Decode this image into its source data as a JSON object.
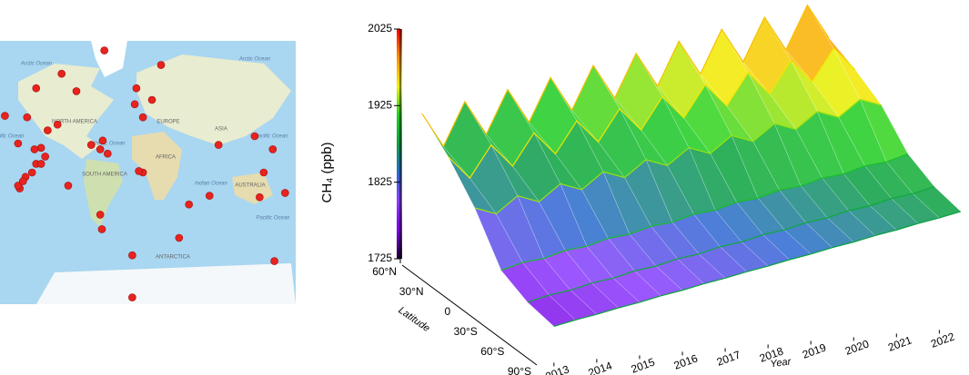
{
  "map": {
    "labels": [
      "Arctic Ocean",
      "Arctic Ocean",
      "NORTH AMERICA",
      "EUROPE",
      "ASIA",
      "Pacific Ocean",
      "Atlantic Ocean",
      "Pacific Ocean",
      "AFRICA",
      "SOUTH AMERICA",
      "Indian Ocean",
      "AUSTRALIA",
      "Pacific Ocean",
      "ANTARCTICA"
    ],
    "stations": [
      [
        -48,
        84
      ],
      [
        21,
        74
      ],
      [
        -100,
        68
      ],
      [
        -131,
        58
      ],
      [
        -82,
        56
      ],
      [
        -9,
        58
      ],
      [
        10,
        50
      ],
      [
        -11,
        47
      ],
      [
        -169,
        39
      ],
      [
        -142,
        38
      ],
      [
        -105,
        33
      ],
      [
        -117,
        29
      ],
      [
        -153,
        20
      ],
      [
        -50,
        22
      ],
      [
        -64,
        19
      ],
      [
        -53,
        16
      ],
      [
        -44,
        13
      ],
      [
        -1,
        38
      ],
      [
        -1,
        0
      ],
      [
        91,
        19
      ],
      [
        135,
        25
      ],
      [
        157,
        16
      ],
      [
        146,
        0
      ],
      [
        -92,
        -9
      ],
      [
        -144,
        -3
      ],
      [
        -151,
        -11
      ],
      [
        -131,
        6
      ],
      [
        -6,
        1
      ],
      [
        80,
        -16
      ],
      [
        55,
        -22
      ],
      [
        141,
        -17
      ],
      [
        172,
        -14
      ],
      [
        -53,
        -29
      ],
      [
        -51,
        -39
      ],
      [
        43,
        -45
      ],
      [
        -14,
        -57
      ],
      [
        159,
        -61
      ],
      [
        -14,
        -86
      ],
      [
        -153,
        -9
      ],
      [
        -147,
        -6
      ],
      [
        -136,
        0
      ],
      [
        -125,
        6
      ],
      [
        -120,
        11
      ],
      [
        -125,
        17
      ],
      [
        -133,
        16
      ]
    ]
  },
  "chart_data": {
    "type": "surface3d",
    "zlabel": "CH₄ (ppb)",
    "xlabel": "Year",
    "ylabel": "Latitude",
    "zlim": [
      1725,
      2025
    ],
    "zticks": [
      1725,
      1825,
      1925,
      2025
    ],
    "xlim": [
      2012.6,
      2022.8
    ],
    "xticks": [
      2013,
      2014,
      2015,
      2016,
      2017,
      2018,
      2019,
      2020,
      2021,
      2022
    ],
    "latitudes": [
      "60°N",
      "30°N",
      "0",
      "30°S",
      "60°S",
      "90°S"
    ],
    "colormap": [
      "#1a0030",
      "#7a00e0",
      "#8a3cff",
      "#2a6ad0",
      "#0aa040",
      "#20d020",
      "#f0f000",
      "#ff9000",
      "#ff0000"
    ],
    "x": [
      2013,
      2013.5,
      2014,
      2014.5,
      2015,
      2015.5,
      2016,
      2016.5,
      2017,
      2017.5,
      2018,
      2018.5,
      2019,
      2019.5,
      2020,
      2020.5,
      2021,
      2021.5,
      2022,
      2022.5
    ],
    "series": [
      {
        "values": [
          1915,
          1870,
          1926,
          1881,
          1937,
          1892,
          1948,
          1903,
          1959,
          1914,
          1970,
          1925,
          1981,
          1936,
          1992,
          1947,
          2003,
          1958,
          2014,
          1969
        ]
      },
      {
        "values": [
          1885,
          1855,
          1896,
          1866,
          1907,
          1877,
          1918,
          1888,
          1929,
          1899,
          1940,
          1910,
          1951,
          1921,
          1962,
          1932,
          1973,
          1943,
          1984,
          1954
        ]
      },
      {
        "values": [
          1845,
          1835,
          1856,
          1846,
          1867,
          1857,
          1878,
          1868,
          1889,
          1879,
          1900,
          1890,
          1911,
          1901,
          1922,
          1912,
          1933,
          1923,
          1944,
          1934
        ]
      },
      {
        "values": [
          1790,
          1798,
          1801,
          1809,
          1812,
          1820,
          1823,
          1831,
          1834,
          1842,
          1845,
          1853,
          1856,
          1864,
          1867,
          1875,
          1878,
          1886,
          1889,
          1897
        ]
      },
      {
        "values": [
          1775,
          1782,
          1786,
          1793,
          1797,
          1804,
          1808,
          1815,
          1819,
          1826,
          1830,
          1837,
          1841,
          1848,
          1852,
          1859,
          1863,
          1870,
          1874,
          1881
        ]
      },
      {
        "values": [
          1770,
          1776,
          1781,
          1787,
          1792,
          1798,
          1803,
          1809,
          1814,
          1820,
          1825,
          1831,
          1836,
          1842,
          1847,
          1853,
          1858,
          1864,
          1869,
          1875
        ]
      }
    ]
  }
}
